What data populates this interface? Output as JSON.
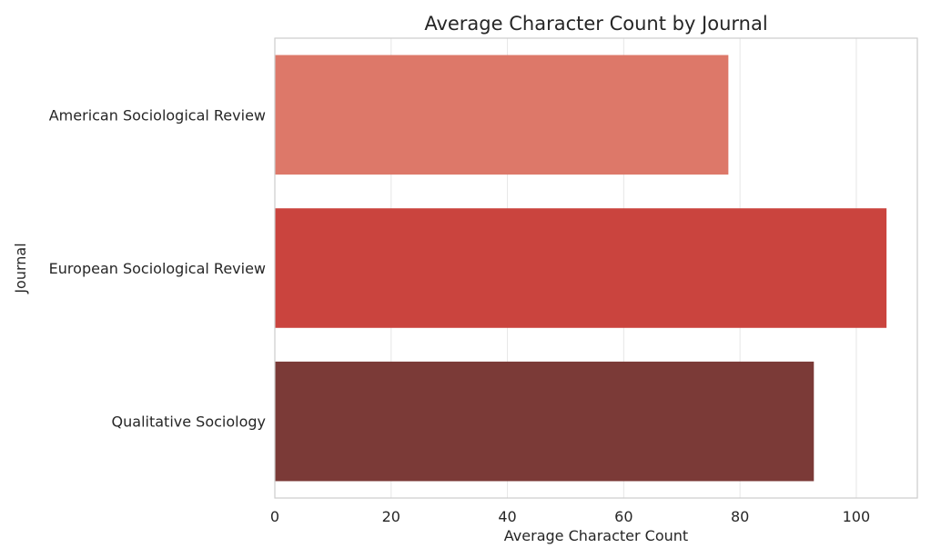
{
  "chart_data": {
    "type": "bar",
    "orientation": "horizontal",
    "title": "Average Character Count by Journal",
    "xlabel": "Average Character Count",
    "ylabel": "Journal",
    "categories": [
      "American Sociological Review",
      "European Sociological Review",
      "Qualitative Sociology"
    ],
    "values": [
      78,
      105.2,
      92.7
    ],
    "colors": [
      "#dd7869",
      "#ca443e",
      "#7b3a37"
    ],
    "xlim": [
      0,
      110.5
    ],
    "xticks": [
      0,
      20,
      40,
      60,
      80,
      100
    ],
    "grid": true,
    "legend": "none"
  }
}
